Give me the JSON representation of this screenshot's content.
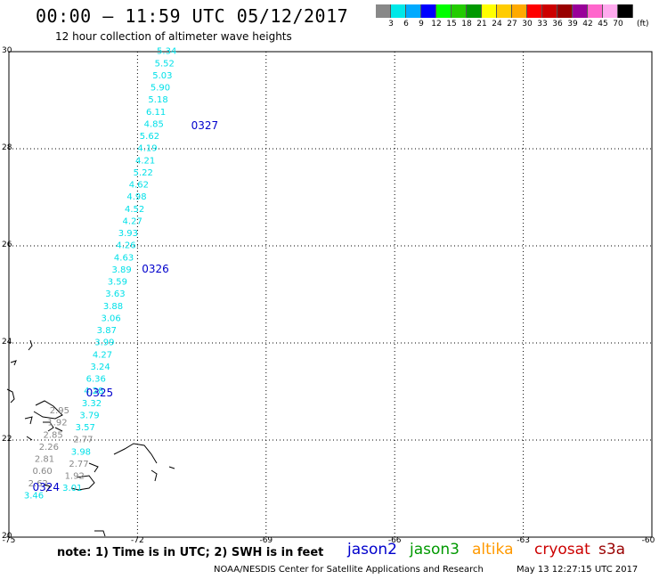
{
  "header": {
    "title": "00:00 – 11:59 UTC 05/12/2017",
    "subtitle": "12 hour collection of altimeter wave heights"
  },
  "colorbar": {
    "colors": [
      "#888888",
      "#00e8e8",
      "#00aaff",
      "#0000ff",
      "#00ff00",
      "#22cc00",
      "#009900",
      "#ffff00",
      "#ffcc00",
      "#ffaa00",
      "#ff0000",
      "#cc0000",
      "#990000",
      "#990099",
      "#ff66cc",
      "#ffaaee",
      "#000000"
    ],
    "labels": [
      "3",
      "6",
      "9",
      "12",
      "15",
      "18",
      "21",
      "24",
      "27",
      "30",
      "33",
      "36",
      "39",
      "42",
      "45",
      "70"
    ],
    "unit": "(ft)"
  },
  "map": {
    "lat_labels": [
      "30",
      "28",
      "26",
      "24",
      "22",
      "20"
    ],
    "lon_labels": [
      "-75",
      "-72",
      "-69",
      "-66",
      "-63",
      "-60"
    ],
    "lat_range": [
      20,
      30
    ],
    "lon_range": [
      -75,
      -60
    ],
    "track_color": "#00e0e8",
    "low_color": "#888888",
    "pass_label_color": "#0000cc",
    "pass_labels": [
      {
        "text": "0327",
        "lat": 28.4,
        "lon": -70.75
      },
      {
        "text": "0326",
        "lat": 25.45,
        "lon": -71.9
      },
      {
        "text": "0325",
        "lat": 22.9,
        "lon": -73.2
      },
      {
        "text": "0324",
        "lat": 20.95,
        "lon": -74.45
      }
    ],
    "swh": [
      {
        "v": "5.34",
        "lat": 29.95,
        "lon": -71.55
      },
      {
        "v": "5.52",
        "lat": 29.7,
        "lon": -71.6
      },
      {
        "v": "5.03",
        "lat": 29.45,
        "lon": -71.65
      },
      {
        "v": "5.90",
        "lat": 29.2,
        "lon": -71.7
      },
      {
        "v": "5.18",
        "lat": 28.95,
        "lon": -71.75
      },
      {
        "v": "6.11",
        "lat": 28.7,
        "lon": -71.8
      },
      {
        "v": "4.85",
        "lat": 28.45,
        "lon": -71.85
      },
      {
        "v": "5.62",
        "lat": 28.2,
        "lon": -71.95
      },
      {
        "v": "4.19",
        "lat": 27.95,
        "lon": -72.0
      },
      {
        "v": "4.21",
        "lat": 27.7,
        "lon": -72.05
      },
      {
        "v": "5.22",
        "lat": 27.45,
        "lon": -72.1
      },
      {
        "v": "4.62",
        "lat": 27.2,
        "lon": -72.2
      },
      {
        "v": "4.98",
        "lat": 26.95,
        "lon": -72.25
      },
      {
        "v": "4.52",
        "lat": 26.7,
        "lon": -72.3
      },
      {
        "v": "4.27",
        "lat": 26.45,
        "lon": -72.35
      },
      {
        "v": "3.93",
        "lat": 26.2,
        "lon": -72.45
      },
      {
        "v": "4.26",
        "lat": 25.95,
        "lon": -72.5
      },
      {
        "v": "4.63",
        "lat": 25.7,
        "lon": -72.55
      },
      {
        "v": "3.89",
        "lat": 25.45,
        "lon": -72.6
      },
      {
        "v": "3.59",
        "lat": 25.2,
        "lon": -72.7
      },
      {
        "v": "3.63",
        "lat": 24.95,
        "lon": -72.75
      },
      {
        "v": "3.88",
        "lat": 24.7,
        "lon": -72.8
      },
      {
        "v": "3.06",
        "lat": 24.45,
        "lon": -72.85
      },
      {
        "v": "3.87",
        "lat": 24.2,
        "lon": -72.95
      },
      {
        "v": "3.99",
        "lat": 23.95,
        "lon": -73.0
      },
      {
        "v": "4.27",
        "lat": 23.7,
        "lon": -73.05
      },
      {
        "v": "3.24",
        "lat": 23.45,
        "lon": -73.1
      },
      {
        "v": "6.36",
        "lat": 23.2,
        "lon": -73.2
      },
      {
        "v": "4.28",
        "lat": 22.95,
        "lon": -73.25
      },
      {
        "v": "3.32",
        "lat": 22.7,
        "lon": -73.3
      },
      {
        "v": "3.79",
        "lat": 22.45,
        "lon": -73.35
      },
      {
        "v": "3.57",
        "lat": 22.2,
        "lon": -73.45
      },
      {
        "v": "2.77",
        "lat": 21.95,
        "lon": -73.5
      },
      {
        "v": "3.98",
        "lat": 21.7,
        "lon": -73.55
      },
      {
        "v": "2.77",
        "lat": 21.45,
        "lon": -73.6
      },
      {
        "v": "1.92",
        "lat": 21.2,
        "lon": -73.7
      },
      {
        "v": "3.01",
        "lat": 20.95,
        "lon": -73.75
      },
      {
        "v": "2.95",
        "lat": 22.55,
        "lon": -74.05
      },
      {
        "v": "1.92",
        "lat": 22.3,
        "lon": -74.1
      },
      {
        "v": "2.85",
        "lat": 22.05,
        "lon": -74.2
      },
      {
        "v": "2.26",
        "lat": 21.8,
        "lon": -74.3
      },
      {
        "v": "2.81",
        "lat": 21.55,
        "lon": -74.4
      },
      {
        "v": "0.60",
        "lat": 21.3,
        "lon": -74.45
      },
      {
        "v": "2.62",
        "lat": 21.05,
        "lon": -74.55
      },
      {
        "v": "3.46",
        "lat": 20.8,
        "lon": -74.65
      }
    ]
  },
  "footer": {
    "note": "note: 1) Time is in UTC; 2) SWH is in feet",
    "missions": [
      {
        "name": "jason2",
        "color": "#0000cc"
      },
      {
        "name": "jason3",
        "color": "#009900"
      },
      {
        "name": "altika",
        "color": "#ff9900"
      },
      {
        "name": "cryosat",
        "color": "#cc0000"
      },
      {
        "name": "s3a",
        "color": "#990000"
      }
    ],
    "credit": "NOAA/NESDIS Center for Satellite Applications and Research",
    "timestamp": "May 13 12:27:15 UTC 2017"
  }
}
